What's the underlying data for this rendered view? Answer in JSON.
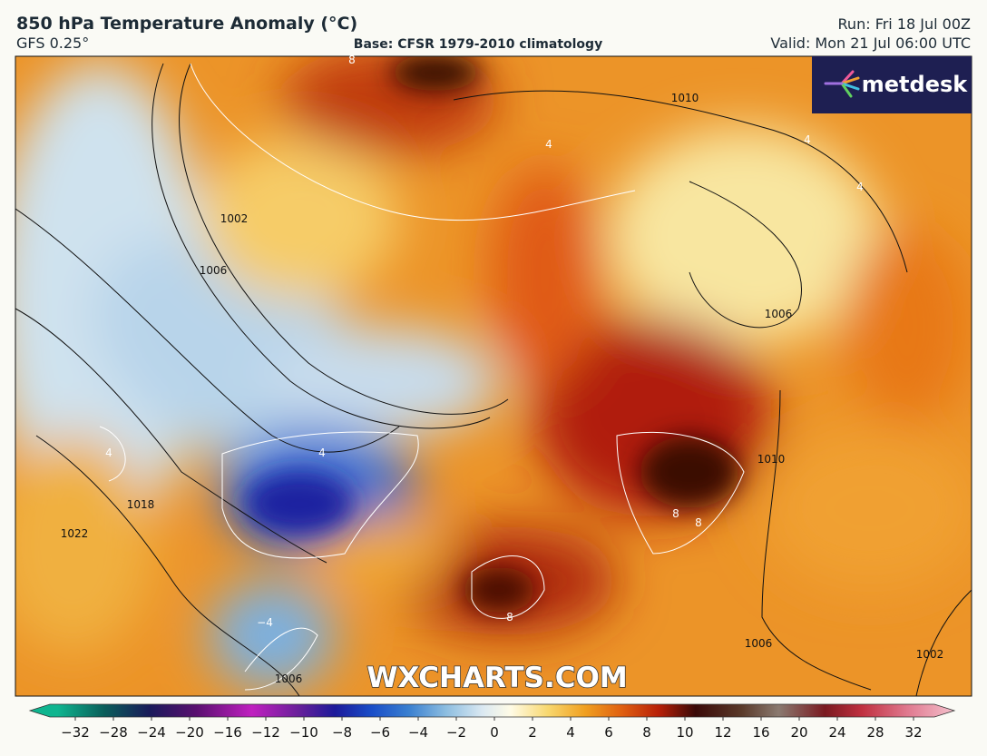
{
  "header": {
    "title": "850 hPa Temperature Anomaly (°C)",
    "model": "GFS 0.25°",
    "base": "Base: CFSR 1979-2010 climatology",
    "run": "Run: Fri 18 Jul 00Z",
    "valid": "Valid: Mon 21 Jul 06:00 UTC"
  },
  "logo": "metdesk",
  "watermark": "WXCHARTS.COM",
  "map": {
    "contour_labels": [
      "1010",
      "1002",
      "1006",
      "1018",
      "1022",
      "1006",
      "1010",
      "1006",
      "1002",
      "1006",
      "8",
      "4",
      "4",
      "4",
      "8",
      "8",
      "8",
      "−4",
      "4",
      "4"
    ]
  },
  "colorbar": {
    "labels": [
      "−32",
      "−28",
      "−24",
      "−20",
      "−16",
      "−12",
      "−10",
      "−8",
      "−6",
      "−4",
      "−2",
      "0",
      "2",
      "4",
      "6",
      "8",
      "10",
      "12",
      "16",
      "20",
      "24",
      "28",
      "32"
    ]
  }
}
